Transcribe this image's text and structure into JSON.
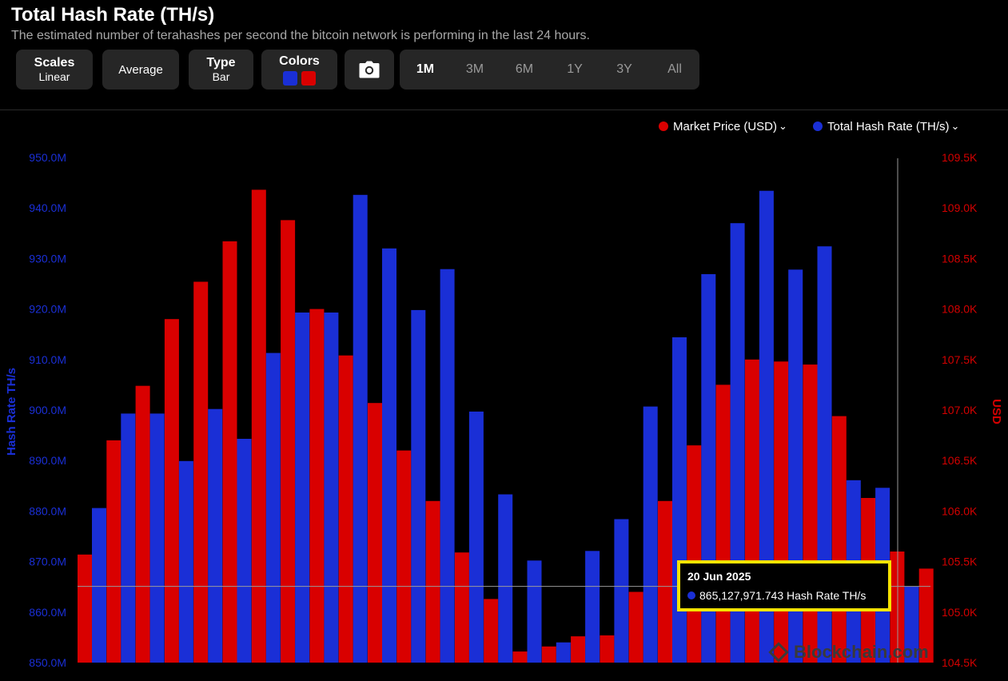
{
  "header": {
    "title": "Total Hash Rate (TH/s)",
    "subtitle": "The estimated number of terahashes per second the bitcoin network is performing in the last 24 hours."
  },
  "toolbar": {
    "scales_label": "Scales",
    "scales_value": "Linear",
    "average_label": "Average",
    "type_label": "Type",
    "type_value": "Bar",
    "colors_label": "Colors",
    "camera_icon": "camera-icon",
    "ranges": [
      "1M",
      "3M",
      "6M",
      "1Y",
      "3Y",
      "All"
    ],
    "active_range": "1M"
  },
  "legend": {
    "market_price": "Market Price (USD)",
    "hash_rate": "Total Hash Rate (TH/s)"
  },
  "tooltip": {
    "date": "20 Jun 2025",
    "value": "865,127,971.743 Hash Rate TH/s"
  },
  "watermark": "Blockchain.com",
  "colors": {
    "hash_rate": "#1a2fd6",
    "market_price": "#d90000",
    "left_axis_text": "#1a2fd6",
    "right_axis_text": "#d40000",
    "highlight": "#f5e400"
  },
  "chart_data": {
    "type": "bar",
    "ylabel": "Hash Rate TH/s",
    "y2label": "USD",
    "ylim": [
      850,
      950
    ],
    "y2lim": [
      104.5,
      109.5
    ],
    "yticks": [
      "850.0M",
      "860.0M",
      "870.0M",
      "880.0M",
      "890.0M",
      "900.0M",
      "910.0M",
      "920.0M",
      "930.0M",
      "940.0M",
      "950.0M"
    ],
    "y2ticks": [
      "104.5K",
      "105.0K",
      "105.5K",
      "106.0K",
      "106.5K",
      "107.0K",
      "107.5K",
      "108.0K",
      "108.5K",
      "109.0K",
      "109.5K"
    ],
    "legend_position": "top-right",
    "crosshair_y": 865.1,
    "series": [
      {
        "name": "Total Hash Rate (TH/s)",
        "axis": "left",
        "values": [
          880.6,
          899.3,
          899.3,
          889.9,
          900.2,
          894.3,
          911.3,
          919.3,
          919.3,
          942.6,
          932.0,
          919.8,
          927.9,
          899.7,
          883.3,
          870.2,
          854.0,
          872.1,
          878.4,
          900.7,
          914.4,
          926.9,
          937.0,
          943.4,
          927.8,
          932.4,
          886.1,
          884.6,
          865.1
        ]
      },
      {
        "name": "Market Price (USD)",
        "axis": "right",
        "values": [
          105.57,
          106.7,
          107.24,
          107.9,
          108.27,
          108.67,
          109.18,
          108.88,
          108.0,
          107.54,
          107.07,
          106.6,
          106.1,
          105.59,
          105.13,
          104.61,
          104.66,
          104.76,
          104.77,
          105.2,
          106.1,
          106.65,
          107.25,
          107.5,
          107.48,
          107.45,
          106.94,
          106.13,
          105.6,
          105.43
        ]
      }
    ]
  }
}
